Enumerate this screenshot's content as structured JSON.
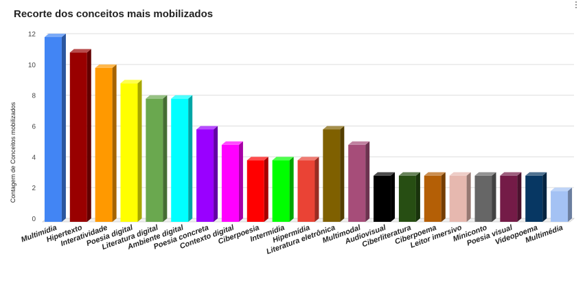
{
  "chart_data": {
    "type": "bar",
    "title": "Recorte dos conceitos mais mobilizados",
    "xlabel": "",
    "ylabel": "Contagem de Conceitos mobilizados",
    "ylim": [
      0,
      12
    ],
    "yticks": [
      0,
      2,
      4,
      6,
      8,
      10,
      12
    ],
    "grid": true,
    "legend": "none",
    "style": "3d",
    "categories": [
      "Multimídia",
      "Hipertexto",
      "Interatividade",
      "Poesia digital",
      "Literatura digital",
      "Ambiente digital",
      "Poesia concreta",
      "Contexto digital",
      "Ciberpoesia",
      "Intermídia",
      "Hipermídia",
      "Literatura eletrônica",
      "Multimodal",
      "Audiovisual",
      "Ciberliteratura",
      "Ciberpoema",
      "Leitor imersivo",
      "Miniconto",
      "Poesia visual",
      "Videopoema",
      "Multimédia"
    ],
    "values": [
      12,
      11,
      10,
      9,
      8,
      8,
      6,
      5,
      4,
      4,
      4,
      6,
      5,
      3,
      3,
      3,
      3,
      3,
      3,
      3,
      2
    ],
    "colors": [
      "#4285f4",
      "#990000",
      "#ff9900",
      "#ffff00",
      "#6aa84f",
      "#00ffff",
      "#9900ff",
      "#ff00ff",
      "#ff0000",
      "#00ff00",
      "#ea4335",
      "#7f6000",
      "#a64d79",
      "#000000",
      "#274e13",
      "#b45f06",
      "#e6b8af",
      "#666666",
      "#741b47",
      "#073763",
      "#a4c2f4"
    ]
  }
}
